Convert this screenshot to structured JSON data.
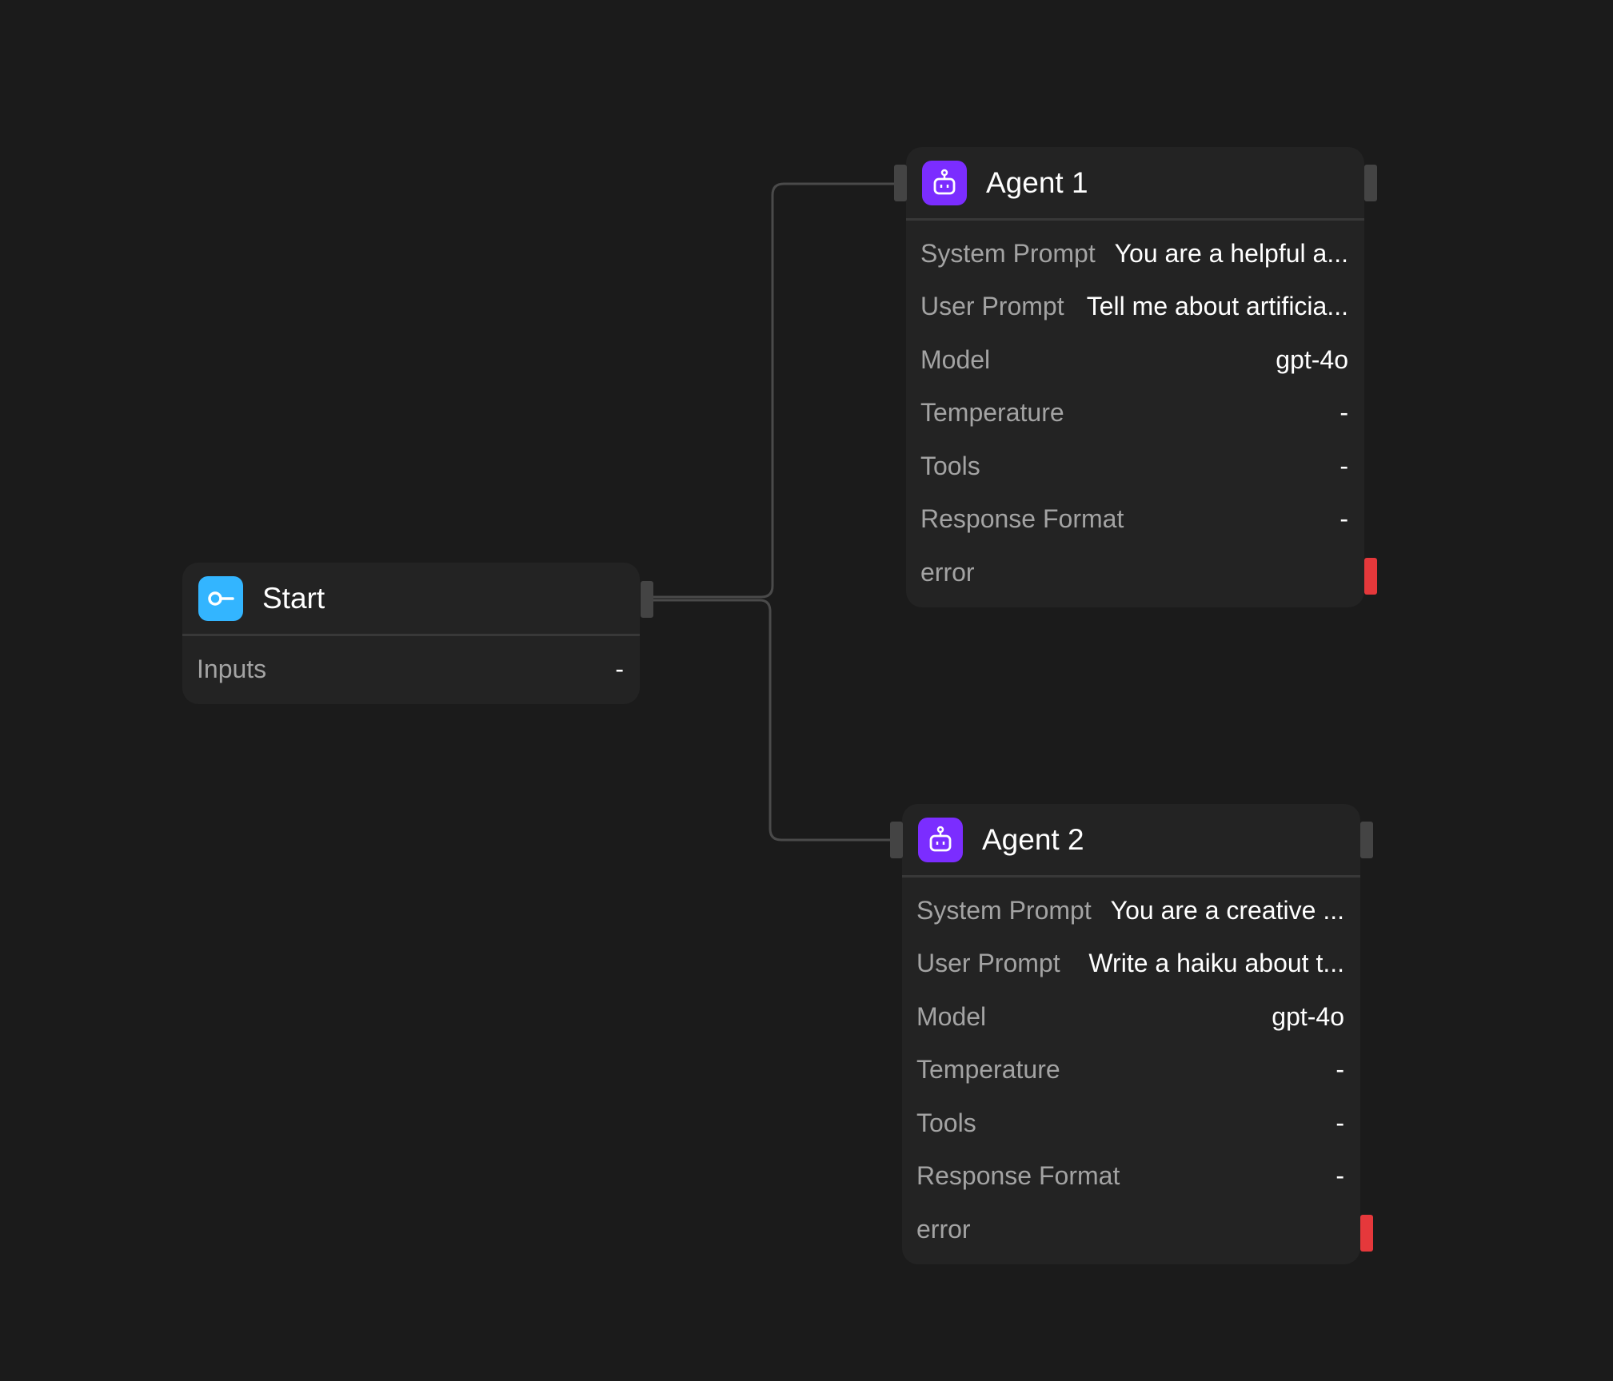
{
  "colors": {
    "background": "#1b1b1b",
    "node": "#232323",
    "start_icon": "#33b5ff",
    "agent_icon": "#7b2dff",
    "error_port": "#e5383b",
    "edge": "#4a4a4a"
  },
  "start": {
    "title": "Start",
    "icon": "key-icon",
    "rows": [
      {
        "label": "Inputs",
        "value": "-"
      }
    ]
  },
  "agents": [
    {
      "title": "Agent 1",
      "icon": "robot-icon",
      "rows": [
        {
          "label": "System Prompt",
          "value": "You are a helpful a..."
        },
        {
          "label": "User Prompt",
          "value": "Tell me about artificia..."
        },
        {
          "label": "Model",
          "value": "gpt-4o"
        },
        {
          "label": "Temperature",
          "value": "-"
        },
        {
          "label": "Tools",
          "value": "-"
        },
        {
          "label": "Response Format",
          "value": "-"
        },
        {
          "label": "error",
          "value": ""
        }
      ]
    },
    {
      "title": "Agent 2",
      "icon": "robot-icon",
      "rows": [
        {
          "label": "System Prompt",
          "value": "You are a creative ..."
        },
        {
          "label": "User Prompt",
          "value": "Write a haiku about t..."
        },
        {
          "label": "Model",
          "value": "gpt-4o"
        },
        {
          "label": "Temperature",
          "value": "-"
        },
        {
          "label": "Tools",
          "value": "-"
        },
        {
          "label": "Response Format",
          "value": "-"
        },
        {
          "label": "error",
          "value": ""
        }
      ]
    }
  ]
}
